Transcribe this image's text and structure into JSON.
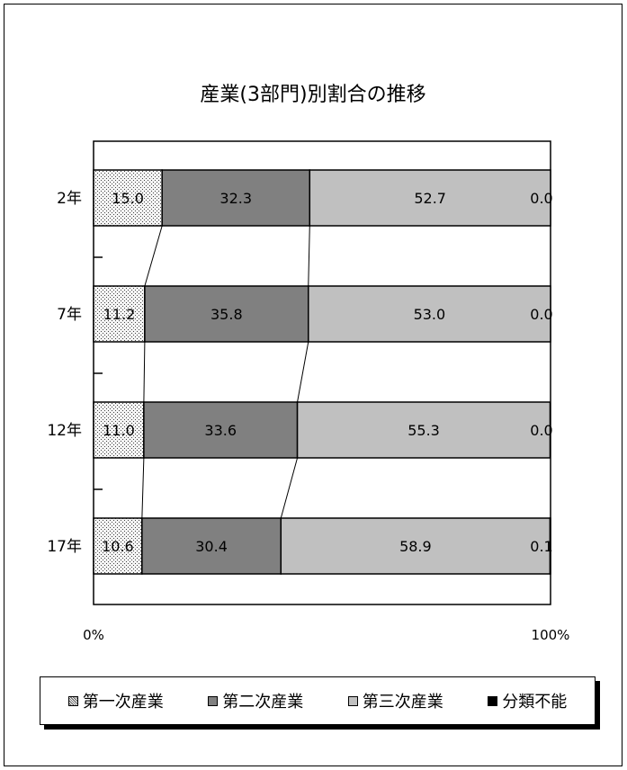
{
  "chart_data": {
    "type": "bar",
    "orientation": "horizontal",
    "stacked": "percent",
    "title": "産業(3部門)別割合の推移",
    "categories": [
      "2年",
      "7年",
      "12年",
      "17年"
    ],
    "series": [
      {
        "name": "第一次産業",
        "values": [
          15.0,
          11.2,
          11.0,
          10.6
        ],
        "labels": [
          "15.0",
          "11.2",
          "11.0",
          "10.6"
        ],
        "color": "#f2f2f2",
        "pattern": "dots"
      },
      {
        "name": "第二次産業",
        "values": [
          32.3,
          35.8,
          33.6,
          30.4
        ],
        "labels": [
          "32.3",
          "35.8",
          "33.6",
          "30.4"
        ],
        "color": "#808080"
      },
      {
        "name": "第三次産業",
        "values": [
          52.7,
          53.0,
          55.3,
          58.9
        ],
        "labels": [
          "52.7",
          "53.0",
          "55.3",
          "58.9"
        ],
        "color": "#c0c0c0"
      },
      {
        "name": "分類不能",
        "values": [
          0.0,
          0.0,
          0.0,
          0.1
        ],
        "labels": [
          "0.0",
          "0.0",
          "0.0",
          "0.1"
        ],
        "color": "#000000"
      }
    ],
    "xlim": [
      0,
      100
    ],
    "x_tick_labels": [
      "0%",
      "100%"
    ],
    "series_lines": true,
    "legend_position": "bottom"
  }
}
